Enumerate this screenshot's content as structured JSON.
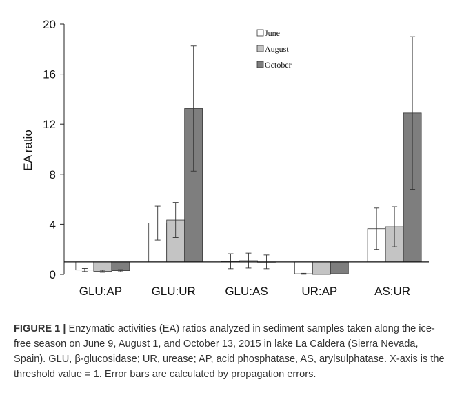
{
  "chart_data": {
    "type": "bar",
    "ylabel": "EA ratio",
    "ylim": [
      0,
      20
    ],
    "yticks": [
      "0",
      "4",
      "8",
      "12",
      "16",
      "20"
    ],
    "baseline": 1,
    "categories": [
      "GLU:AP",
      "GLU:UR",
      "GLU:AS",
      "UR:AP",
      "AS:UR"
    ],
    "legend_position": "top-right",
    "series": [
      {
        "name": "June",
        "color": "#ffffff",
        "values": [
          0.35,
          4.1,
          1.05,
          0.05,
          3.65
        ],
        "errors": [
          0.12,
          1.35,
          0.6,
          0.04,
          1.65
        ]
      },
      {
        "name": "August",
        "color": "#c4c4c4",
        "values": [
          0.25,
          4.35,
          1.1,
          0.0,
          3.8
        ],
        "errors": [
          0.08,
          1.4,
          0.6,
          0.0,
          1.6
        ]
      },
      {
        "name": "October",
        "color": "#7e7e7e",
        "values": [
          0.3,
          13.25,
          1.0,
          0.05,
          12.9
        ],
        "errors": [
          0.08,
          5.0,
          0.55,
          0.0,
          6.1
        ]
      }
    ]
  },
  "caption": {
    "label": "FIGURE 1 |",
    "text": " Enzymatic activities (EA) ratios analyzed in sediment samples taken along the ice-free season on June 9, August 1, and October 13, 2015 in lake La Caldera (Sierra Nevada, Spain). GLU, β-glucosidase; UR, urease; AP, acid phosphatase, AS, arylsulphatase. X-axis is the threshold value = 1. Error bars are calculated by propagation errors."
  }
}
